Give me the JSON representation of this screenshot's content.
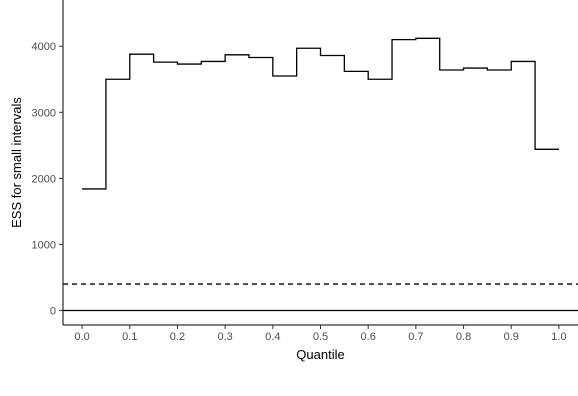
{
  "chart_data": {
    "type": "line",
    "step": true,
    "xlabel": "Quantile",
    "ylabel": "ESS for small intervals",
    "xlim": [
      -0.04,
      1.04
    ],
    "ylim": [
      -220,
      4700
    ],
    "x_ticks": [
      0.0,
      0.1,
      0.2,
      0.3,
      0.4,
      0.5,
      0.6,
      0.7,
      0.8,
      0.9,
      1.0
    ],
    "x_tick_labels": [
      "0.0",
      "0.1",
      "0.2",
      "0.3",
      "0.4",
      "0.5",
      "0.6",
      "0.7",
      "0.8",
      "0.9",
      "1.0"
    ],
    "y_ticks": [
      0,
      1000,
      2000,
      3000,
      4000
    ],
    "y_tick_labels": [
      "0",
      "1000",
      "2000",
      "3000",
      "4000"
    ],
    "grid": false,
    "series": [
      {
        "style": "step",
        "x": [
          0.0,
          0.05,
          0.1,
          0.15,
          0.2,
          0.25,
          0.3,
          0.35,
          0.4,
          0.45,
          0.5,
          0.55,
          0.6,
          0.65,
          0.7,
          0.75,
          0.8,
          0.85,
          0.9,
          0.95,
          1.0
        ],
        "values": [
          1840,
          3500,
          3880,
          3760,
          3730,
          3770,
          3870,
          3830,
          3550,
          3970,
          3860,
          3620,
          3500,
          4100,
          4120,
          3640,
          3670,
          3640,
          3770,
          2440,
          2440
        ]
      }
    ],
    "reference_lines": [
      {
        "y": 400,
        "style": "dashed"
      },
      {
        "y": 0,
        "style": "solid"
      }
    ]
  }
}
